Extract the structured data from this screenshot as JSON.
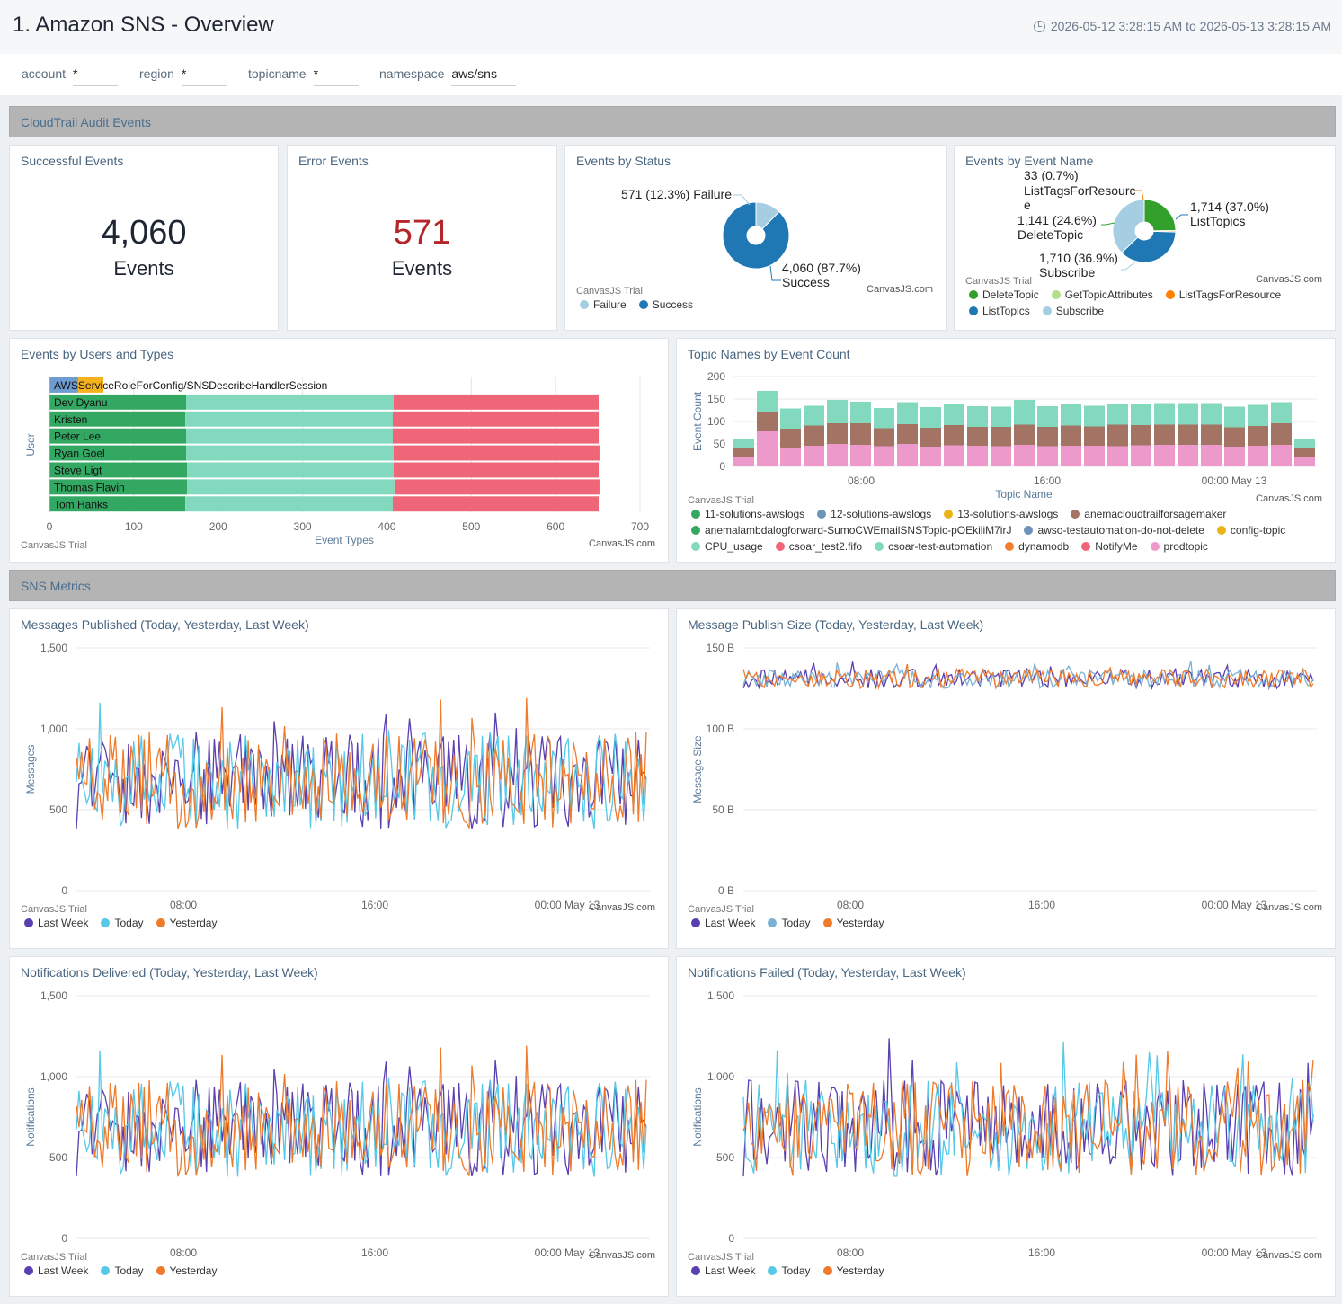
{
  "header": {
    "title": "1. Amazon SNS - Overview",
    "time_range": "2026-05-12 3:28:15 AM to 2026-05-13 3:28:15 AM"
  },
  "filters": [
    {
      "label": "account",
      "value": "*"
    },
    {
      "label": "region",
      "value": "*"
    },
    {
      "label": "topicname",
      "value": "*"
    },
    {
      "label": "namespace",
      "value": "aws/sns"
    }
  ],
  "sections": {
    "cloudtrail": "CloudTrail Audit Events",
    "metrics": "SNS Metrics"
  },
  "panels": {
    "successful": {
      "title": "Successful Events",
      "value": "4,060",
      "unit": "Events",
      "color": "#1f2633"
    },
    "errors": {
      "title": "Error Events",
      "value": "571",
      "unit": "Events",
      "color": "#b3262a"
    },
    "by_status": {
      "title": "Events by Status"
    },
    "by_event_name": {
      "title": "Events by Event Name"
    },
    "by_users": {
      "title": "Events by Users and Types"
    },
    "topic_names": {
      "title": "Topic Names by Event Count"
    },
    "published": {
      "title": "Messages Published (Today, Yesterday, Last Week)"
    },
    "publish_size": {
      "title": "Message Publish Size (Today, Yesterday, Last Week)"
    },
    "delivered": {
      "title": "Notifications Delivered (Today, Yesterday, Last Week)"
    },
    "failed": {
      "title": "Notifications Failed (Today, Yesterday, Last Week)"
    }
  },
  "watermarks": {
    "trial": "CanvasJS Trial",
    "site": "CanvasJS.com"
  },
  "chart_data": [
    {
      "id": "status",
      "type": "pie",
      "labels": [
        "Failure",
        "Success"
      ],
      "values": [
        571,
        4060
      ],
      "percents": [
        "12.3%",
        "87.7%"
      ],
      "value_labels": [
        "571",
        "4,060"
      ],
      "colors": [
        "#a6cee3",
        "#1f78b4"
      ]
    },
    {
      "id": "event_name",
      "type": "pie",
      "labels": [
        "DeleteTopic",
        "GetTopicAttributes",
        "ListTagsForResource",
        "ListTopics",
        "Subscribe"
      ],
      "values": [
        1141,
        0,
        33,
        1714,
        1710
      ],
      "percents": [
        "24.6%",
        "0.0%",
        "0.7%",
        "37.0%",
        "36.9%"
      ],
      "value_labels": [
        "1,141",
        "0",
        "33",
        "1,714",
        "1,710"
      ],
      "colors": [
        "#33a02c",
        "#b2df8a",
        "#ff7f00",
        "#1f78b4",
        "#a6cee3"
      ]
    },
    {
      "id": "users",
      "type": "bar",
      "orientation": "horizontal",
      "stacked": true,
      "categories": [
        "AWSServiceRoleForConfig/SNSDescribeHandlerSession",
        "Dev Dyanu",
        "Kristen",
        "Peter Lee",
        "Ryan Goel",
        "Steve Ligt",
        "Thomas Flavin",
        "Tom Hanks"
      ],
      "series": [
        {
          "values": [
            34,
            162,
            161,
            162,
            162,
            163,
            163,
            161
          ],
          "color": "#33a862"
        },
        {
          "values": [
            30,
            246,
            246,
            245,
            246,
            245,
            246,
            246
          ],
          "color": "#82d9be"
        },
        {
          "values": [
            0,
            243,
            244,
            244,
            244,
            243,
            243,
            244
          ],
          "color": "#ee6677"
        }
      ],
      "first_row_colors": [
        "#6e9bd0",
        "#f3b21e"
      ],
      "xlim": [
        0,
        700
      ],
      "xticks": [
        0,
        100,
        200,
        300,
        400,
        500,
        600,
        700
      ],
      "xlabel": "Event Types",
      "ylabel": "User"
    },
    {
      "id": "topics",
      "type": "bar",
      "stacked": true,
      "bars": 25,
      "series": [
        {
          "values": [
            22,
            78,
            42,
            46,
            50,
            48,
            45,
            50,
            44,
            47,
            46,
            45,
            48,
            45,
            46,
            46,
            45,
            47,
            48,
            48,
            48,
            44,
            46,
            48,
            20
          ],
          "color": "#ee99cc"
        },
        {
          "values": [
            20,
            42,
            42,
            45,
            46,
            48,
            40,
            44,
            42,
            45,
            42,
            43,
            45,
            43,
            45,
            43,
            48,
            45,
            45,
            45,
            45,
            43,
            44,
            48,
            20
          ],
          "color": "#a37463"
        },
        {
          "values": [
            20,
            48,
            45,
            44,
            52,
            48,
            45,
            49,
            46,
            47,
            46,
            45,
            55,
            46,
            48,
            46,
            47,
            48,
            48,
            48,
            48,
            46,
            47,
            47,
            22
          ],
          "color": "#82d9be"
        }
      ],
      "ylim": [
        0,
        200
      ],
      "yticks": [
        0,
        50,
        100,
        150,
        200
      ],
      "xticks": [
        "08:00",
        "16:00",
        "00:00 May 13"
      ],
      "xlabel": "Topic Name",
      "ylabel": "Event Count",
      "legend": [
        {
          "name": "11-solutions-awslogs",
          "color": "#33a862"
        },
        {
          "name": "12-solutions-awslogs",
          "color": "#6c93b8"
        },
        {
          "name": "13-solutions-awslogs",
          "color": "#e8b418"
        },
        {
          "name": "anemacloudtrailforsagemaker",
          "color": "#a37463"
        },
        {
          "name": "anemalambdalogforward-SumoCWEmailSNSTopic-pOEkiliM7irJ",
          "color": "#33a862"
        },
        {
          "name": "awso-testautomation-do-not-delete",
          "color": "#6c93b8"
        },
        {
          "name": "config-topic",
          "color": "#e8b418"
        },
        {
          "name": "CPU_usage",
          "color": "#82d9be"
        },
        {
          "name": "csoar_test2.fifo",
          "color": "#ee6677"
        },
        {
          "name": "csoar-test-automation",
          "color": "#82d9be"
        },
        {
          "name": "dynamodb",
          "color": "#f08030"
        },
        {
          "name": "NotifyMe",
          "color": "#ee6677"
        },
        {
          "name": "prodtopic",
          "color": "#ee99cc"
        }
      ]
    },
    {
      "id": "published",
      "type": "line",
      "points": 220,
      "ylim": [
        0,
        1500
      ],
      "yticks": [
        "0",
        "500",
        "1,000",
        "1,500"
      ],
      "ylabel": "Messages",
      "xticks": [
        "08:00",
        "16:00",
        "00:00 May 13"
      ],
      "base": 680,
      "amp": 300,
      "series": [
        {
          "name": "Last Week",
          "color": "#5a3fb0"
        },
        {
          "name": "Today",
          "color": "#56c8e8"
        },
        {
          "name": "Yesterday",
          "color": "#ef7a2a"
        }
      ]
    },
    {
      "id": "publish_size",
      "type": "line",
      "points": 220,
      "ylim": [
        0,
        150
      ],
      "yticks": [
        "0 B",
        "50 B",
        "100 B",
        "150 B"
      ],
      "ylabel": "Message Size",
      "xticks": [
        "08:00",
        "16:00",
        "00:00 May 13"
      ],
      "base": 131,
      "amp": 6,
      "series": [
        {
          "name": "Last Week",
          "color": "#5a3fb0"
        },
        {
          "name": "Today",
          "color": "#7ab2d4"
        },
        {
          "name": "Yesterday",
          "color": "#ef7a2a"
        }
      ]
    },
    {
      "id": "delivered",
      "type": "line",
      "points": 220,
      "ylim": [
        0,
        1500
      ],
      "yticks": [
        "0",
        "500",
        "1,000",
        "1,500"
      ],
      "ylabel": "Notifications",
      "xticks": [
        "08:00",
        "16:00",
        "00:00 May 13"
      ],
      "base": 680,
      "amp": 300,
      "series": [
        {
          "name": "Last Week",
          "color": "#5a3fb0"
        },
        {
          "name": "Today",
          "color": "#56c8e8"
        },
        {
          "name": "Yesterday",
          "color": "#ef7a2a"
        }
      ]
    },
    {
      "id": "failed",
      "type": "line",
      "points": 220,
      "ylim": [
        0,
        1500
      ],
      "yticks": [
        "0",
        "500",
        "1,000",
        "1,500"
      ],
      "ylabel": "Notifications",
      "xticks": [
        "08:00",
        "16:00",
        "00:00 May 13"
      ],
      "base": 680,
      "amp": 300,
      "series": [
        {
          "name": "Last Week",
          "color": "#5a3fb0"
        },
        {
          "name": "Today",
          "color": "#56c8e8"
        },
        {
          "name": "Yesterday",
          "color": "#ef7a2a"
        }
      ]
    }
  ]
}
